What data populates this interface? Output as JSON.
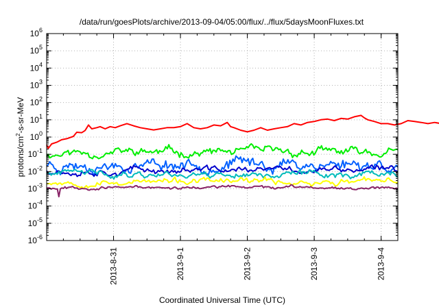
{
  "chart_data": {
    "type": "line",
    "title": "/data/run/goesPlots/archive/2013-09-04/05:00/flux/../flux/5daysMoonFluxes.txt",
    "xlabel": "Coordinated Universal Time (UTC)",
    "ylabel": {
      "base": "protons/cm",
      "sup": "2",
      "rest": "-s-sr-MeV"
    },
    "yscale": "log",
    "ylim_exp": [
      -6,
      6
    ],
    "y_tick_base": "10",
    "x_ticks": [
      "2013-8-31",
      "2013-9-1",
      "2013-9-2",
      "2013-9-3",
      "2013-9-4"
    ],
    "x_range": [
      "2013-08-30T00:00",
      "2013-09-04T06:00"
    ],
    "grid": true,
    "series": [
      {
        "color": "#ff0000",
        "points": [
          [
            0.0,
            0.35
          ],
          [
            0.05,
            0.22
          ],
          [
            0.15,
            0.4
          ],
          [
            0.3,
            0.5
          ],
          [
            0.45,
            0.7
          ],
          [
            0.6,
            0.8
          ],
          [
            0.8,
            1.1
          ],
          [
            0.9,
            1.9
          ],
          [
            1.05,
            1.8
          ],
          [
            1.15,
            2.4
          ],
          [
            1.25,
            5.0
          ],
          [
            1.35,
            3.0
          ],
          [
            1.5,
            3.5
          ],
          [
            1.6,
            4.0
          ],
          [
            1.75,
            3.0
          ],
          [
            1.9,
            4.0
          ],
          [
            2.05,
            3.5
          ],
          [
            2.2,
            4.5
          ],
          [
            2.4,
            6.0
          ],
          [
            2.6,
            4.5
          ],
          [
            2.8,
            3.5
          ],
          [
            3.0,
            3.0
          ],
          [
            3.2,
            2.6
          ],
          [
            3.4,
            3.0
          ],
          [
            3.6,
            3.5
          ],
          [
            3.8,
            3.5
          ],
          [
            4.0,
            4.0
          ],
          [
            4.2,
            6.0
          ],
          [
            4.4,
            3.5
          ],
          [
            4.6,
            3.0
          ],
          [
            4.8,
            3.5
          ],
          [
            5.0,
            5.0
          ],
          [
            5.2,
            4.5
          ],
          [
            5.4,
            7.0
          ],
          [
            5.5,
            4.0
          ],
          [
            5.6,
            3.5
          ],
          [
            5.8,
            2.5
          ],
          [
            6.0,
            2.0
          ],
          [
            6.2,
            2.5
          ],
          [
            6.4,
            3.5
          ],
          [
            6.6,
            2.5
          ],
          [
            6.8,
            3.0
          ],
          [
            7.0,
            3.5
          ],
          [
            7.2,
            4.0
          ],
          [
            7.4,
            6.0
          ],
          [
            7.6,
            5.0
          ],
          [
            7.8,
            7.0
          ],
          [
            8.0,
            8.0
          ],
          [
            8.2,
            10.0
          ],
          [
            8.4,
            11.0
          ],
          [
            8.6,
            9.0
          ],
          [
            8.8,
            12.0
          ],
          [
            9.0,
            11.0
          ],
          [
            9.2,
            15.0
          ],
          [
            9.4,
            18.0
          ],
          [
            9.5,
            13.0
          ],
          [
            9.6,
            10.0
          ],
          [
            9.8,
            8.0
          ],
          [
            10.0,
            6.0
          ],
          [
            10.2,
            6.0
          ],
          [
            10.4,
            5.0
          ],
          [
            10.6,
            6.0
          ],
          [
            10.8,
            9.0
          ],
          [
            11.0,
            8.0
          ],
          [
            11.2,
            7.0
          ],
          [
            11.4,
            6.0
          ],
          [
            11.6,
            7.0
          ],
          [
            11.8,
            6.0
          ],
          [
            12.0,
            5.0
          ],
          [
            12.2,
            4.5
          ],
          [
            12.4,
            4.0
          ],
          [
            12.6,
            3.5
          ],
          [
            12.8,
            4.0
          ],
          [
            13.0,
            3.0
          ],
          [
            13.2,
            3.5
          ],
          [
            13.4,
            3.0
          ],
          [
            13.6,
            2.5
          ],
          [
            13.8,
            2.5
          ],
          [
            14.0,
            2.0
          ],
          [
            14.2,
            2.2
          ],
          [
            14.4,
            1.6
          ],
          [
            14.6,
            1.4
          ],
          [
            14.8,
            1.2
          ],
          [
            15.0,
            1.1
          ],
          [
            15.15,
            1.0
          ],
          [
            15.25,
            0.9
          ]
        ]
      },
      {
        "color": "#00ee00",
        "mean": 0.13,
        "amp": 0.28,
        "seed": 11,
        "start": 0.08
      },
      {
        "color": "#0060ff",
        "mean": 0.028,
        "amp": 0.4,
        "seed": 23
      },
      {
        "color": "#0000cc",
        "mean": 0.012,
        "amp": 0.22,
        "seed": 37
      },
      {
        "color": "#00bbbb",
        "mean": 0.0075,
        "amp": 0.22,
        "seed": 41
      },
      {
        "color": "#ffff00",
        "mean": 0.0025,
        "amp": 0.2,
        "seed": 53
      },
      {
        "color": "#882266",
        "mean": 0.0012,
        "amp": 0.1,
        "seed": 67,
        "dip": 0.00035
      }
    ]
  }
}
